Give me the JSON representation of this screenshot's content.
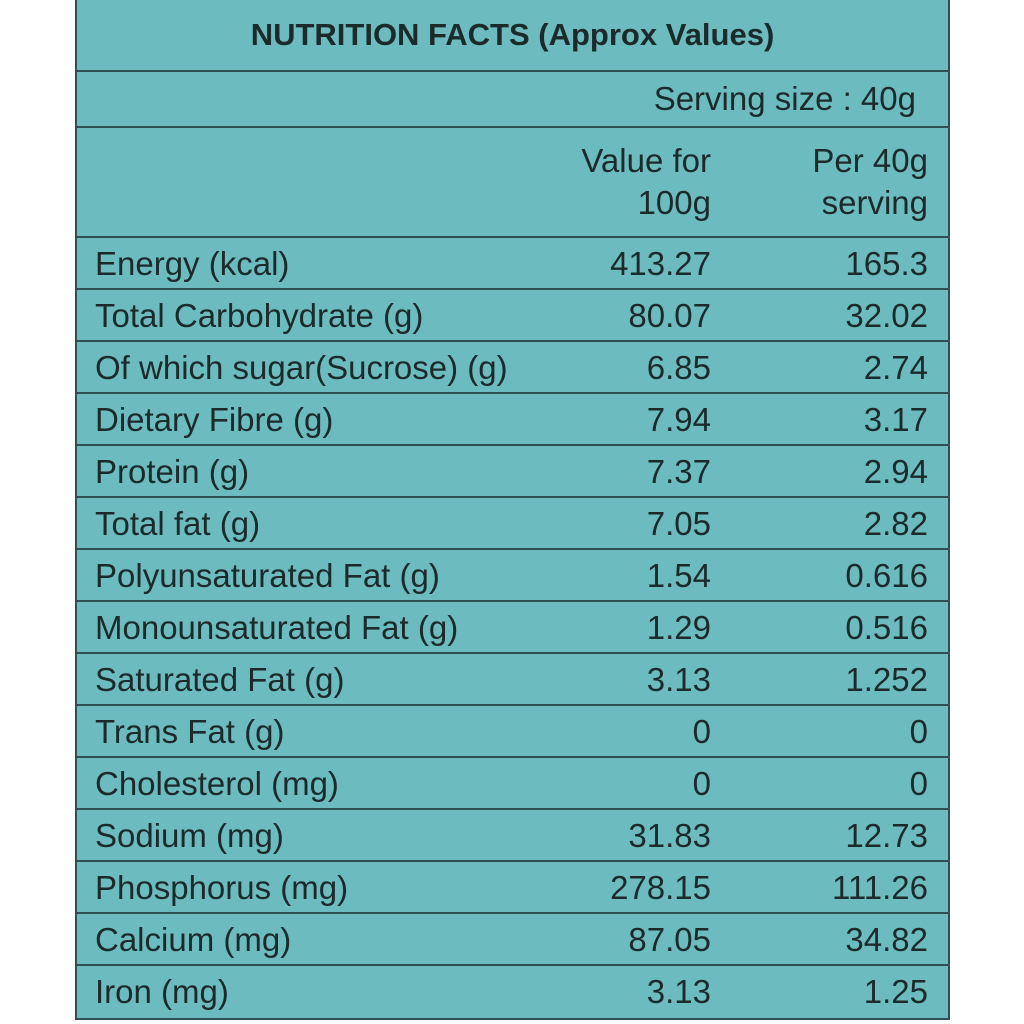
{
  "title": "NUTRITION FACTS (Approx Values)",
  "serving_size": "Serving size : 40g",
  "columns": {
    "per_100g_line1": "Value for",
    "per_100g_line2": "100g",
    "per_serving_line1": "Per 40g",
    "per_serving_line2": "serving"
  },
  "rows": [
    {
      "name": "Energy (kcal)",
      "per_100g": "413.27",
      "per_serving": "165.3"
    },
    {
      "name": "Total Carbohydrate (g)",
      "per_100g": "80.07",
      "per_serving": "32.02"
    },
    {
      "name": "Of which sugar(Sucrose) (g)",
      "per_100g": "6.85",
      "per_serving": "2.74"
    },
    {
      "name": "Dietary Fibre (g)",
      "per_100g": "7.94",
      "per_serving": "3.17"
    },
    {
      "name": "Protein (g)",
      "per_100g": "7.37",
      "per_serving": "2.94"
    },
    {
      "name": "Total fat (g)",
      "per_100g": "7.05",
      "per_serving": "2.82"
    },
    {
      "name": "Polyunsaturated Fat (g)",
      "per_100g": "1.54",
      "per_serving": "0.616"
    },
    {
      "name": "Monounsaturated Fat (g)",
      "per_100g": "1.29",
      "per_serving": "0.516"
    },
    {
      "name": "Saturated Fat (g)",
      "per_100g": "3.13",
      "per_serving": "1.252"
    },
    {
      "name": "Trans Fat (g)",
      "per_100g": "0",
      "per_serving": "0"
    },
    {
      "name": "Cholesterol (mg)",
      "per_100g": "0",
      "per_serving": "0"
    },
    {
      "name": "Sodium (mg)",
      "per_100g": "31.83",
      "per_serving": "12.73"
    },
    {
      "name": "Phosphorus (mg)",
      "per_100g": "278.15",
      "per_serving": "111.26"
    },
    {
      "name": "Calcium (mg)",
      "per_100g": "87.05",
      "per_serving": "34.82"
    },
    {
      "name": "Iron (mg)",
      "per_100g": "3.13",
      "per_serving": "1.25"
    }
  ],
  "colors": {
    "background": "#6cbcbf",
    "border": "#2f4f52",
    "text": "#1d2a2c"
  }
}
